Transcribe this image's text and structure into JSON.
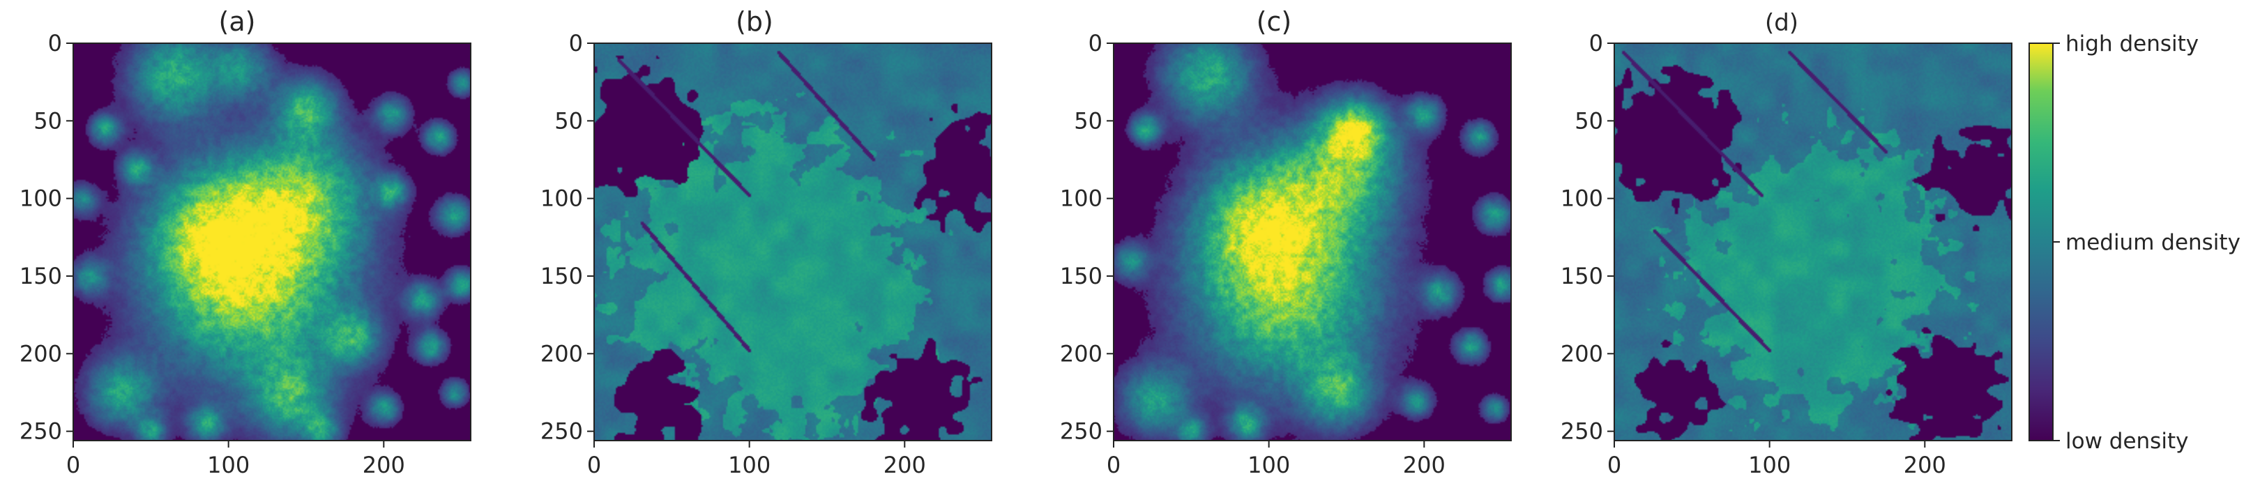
{
  "chart_data": {
    "type": "heatmap",
    "panels": [
      {
        "title": "(a)",
        "xlim": [
          0,
          256
        ],
        "ylim": [
          256,
          0
        ],
        "xticks": [
          0,
          100,
          200
        ],
        "yticks": [
          0,
          50,
          100,
          150,
          200,
          250
        ],
        "xtick_labels": [
          "0",
          "100",
          "200"
        ],
        "ytick_labels": [
          "0",
          "50",
          "100",
          "150",
          "200",
          "250"
        ],
        "pattern": "gaussian-blobs",
        "blobs": [
          {
            "x": 115,
            "y": 155,
            "r": 48,
            "v": 0.82
          },
          {
            "x": 90,
            "y": 120,
            "r": 30,
            "v": 0.55
          },
          {
            "x": 150,
            "y": 95,
            "r": 30,
            "v": 0.55
          },
          {
            "x": 65,
            "y": 20,
            "r": 22,
            "v": 0.62
          },
          {
            "x": 110,
            "y": 15,
            "r": 14,
            "v": 0.45
          },
          {
            "x": 30,
            "y": 225,
            "r": 16,
            "v": 0.55
          },
          {
            "x": 150,
            "y": 40,
            "r": 14,
            "v": 0.55
          },
          {
            "x": 140,
            "y": 230,
            "r": 18,
            "v": 0.5
          },
          {
            "x": 180,
            "y": 190,
            "r": 12,
            "v": 0.45
          },
          {
            "x": 20,
            "y": 55,
            "r": 7,
            "v": 0.55
          },
          {
            "x": 40,
            "y": 80,
            "r": 7,
            "v": 0.5
          },
          {
            "x": 205,
            "y": 45,
            "r": 8,
            "v": 0.5
          },
          {
            "x": 235,
            "y": 60,
            "r": 7,
            "v": 0.55
          },
          {
            "x": 250,
            "y": 25,
            "r": 6,
            "v": 0.5
          },
          {
            "x": 245,
            "y": 110,
            "r": 8,
            "v": 0.55
          },
          {
            "x": 250,
            "y": 155,
            "r": 7,
            "v": 0.55
          },
          {
            "x": 205,
            "y": 95,
            "r": 7,
            "v": 0.5
          },
          {
            "x": 225,
            "y": 165,
            "r": 8,
            "v": 0.5
          },
          {
            "x": 230,
            "y": 195,
            "r": 7,
            "v": 0.55
          },
          {
            "x": 200,
            "y": 235,
            "r": 7,
            "v": 0.5
          },
          {
            "x": 245,
            "y": 225,
            "r": 6,
            "v": 0.5
          },
          {
            "x": 160,
            "y": 250,
            "r": 8,
            "v": 0.45
          },
          {
            "x": 85,
            "y": 245,
            "r": 8,
            "v": 0.5
          },
          {
            "x": 10,
            "y": 150,
            "r": 8,
            "v": 0.45
          },
          {
            "x": 50,
            "y": 250,
            "r": 7,
            "v": 0.45
          },
          {
            "x": 5,
            "y": 100,
            "r": 7,
            "v": 0.45
          }
        ]
      },
      {
        "title": "(b)",
        "xlim": [
          0,
          256
        ],
        "ylim": [
          256,
          0
        ],
        "xticks": [
          0,
          100,
          200
        ],
        "yticks": [
          0,
          50,
          100,
          150,
          200,
          250
        ],
        "xtick_labels": [
          "0",
          "100",
          "200"
        ],
        "ytick_labels": [
          "0",
          "50",
          "100",
          "150",
          "200",
          "250"
        ],
        "pattern": "segmented-plateau",
        "plateau": {
          "x": 115,
          "y": 150,
          "r": 92
        },
        "dark_regions": [
          {
            "x": 30,
            "y": 55,
            "r": 38
          },
          {
            "x": 240,
            "y": 80,
            "r": 30
          },
          {
            "x": 210,
            "y": 230,
            "r": 30
          },
          {
            "x": 40,
            "y": 235,
            "r": 25
          }
        ],
        "lines": [
          {
            "x1": 15,
            "y1": 10,
            "x2": 100,
            "y2": 98
          },
          {
            "x1": 118,
            "y1": 5,
            "x2": 180,
            "y2": 75
          },
          {
            "x1": 30,
            "y1": 115,
            "x2": 100,
            "y2": 198
          }
        ]
      },
      {
        "title": "(c)",
        "xlim": [
          0,
          256
        ],
        "ylim": [
          256,
          0
        ],
        "xticks": [
          0,
          100,
          200
        ],
        "yticks": [
          0,
          50,
          100,
          150,
          200,
          250
        ],
        "xtick_labels": [
          "0",
          "100",
          "200"
        ],
        "ytick_labels": [
          "0",
          "50",
          "100",
          "150",
          "200",
          "250"
        ],
        "pattern": "gaussian-blobs",
        "blobs": [
          {
            "x": 110,
            "y": 160,
            "r": 46,
            "v": 0.8
          },
          {
            "x": 95,
            "y": 110,
            "r": 30,
            "v": 0.55
          },
          {
            "x": 150,
            "y": 80,
            "r": 28,
            "v": 0.58
          },
          {
            "x": 60,
            "y": 20,
            "r": 22,
            "v": 0.62
          },
          {
            "x": 155,
            "y": 55,
            "r": 14,
            "v": 0.6
          },
          {
            "x": 25,
            "y": 230,
            "r": 16,
            "v": 0.55
          },
          {
            "x": 145,
            "y": 225,
            "r": 16,
            "v": 0.5
          },
          {
            "x": 20,
            "y": 55,
            "r": 7,
            "v": 0.55
          },
          {
            "x": 200,
            "y": 45,
            "r": 8,
            "v": 0.5
          },
          {
            "x": 235,
            "y": 60,
            "r": 7,
            "v": 0.55
          },
          {
            "x": 245,
            "y": 110,
            "r": 8,
            "v": 0.55
          },
          {
            "x": 250,
            "y": 155,
            "r": 7,
            "v": 0.55
          },
          {
            "x": 210,
            "y": 160,
            "r": 8,
            "v": 0.5
          },
          {
            "x": 230,
            "y": 195,
            "r": 7,
            "v": 0.55
          },
          {
            "x": 195,
            "y": 230,
            "r": 7,
            "v": 0.5
          },
          {
            "x": 245,
            "y": 235,
            "r": 6,
            "v": 0.5
          },
          {
            "x": 85,
            "y": 245,
            "r": 8,
            "v": 0.5
          },
          {
            "x": 10,
            "y": 140,
            "r": 8,
            "v": 0.45
          },
          {
            "x": 50,
            "y": 250,
            "r": 7,
            "v": 0.45
          }
        ]
      },
      {
        "title": "(d)",
        "xlim": [
          0,
          256
        ],
        "ylim": [
          256,
          0
        ],
        "xticks": [
          0,
          100,
          200
        ],
        "yticks": [
          0,
          50,
          100,
          150,
          200,
          250
        ],
        "xtick_labels": [
          "0",
          "100",
          "200"
        ],
        "ytick_labels": [
          "0",
          "50",
          "100",
          "150",
          "200",
          "250"
        ],
        "pattern": "segmented-plateau",
        "plateau": {
          "x": 130,
          "y": 150,
          "r": 80
        },
        "dark_regions": [
          {
            "x": 35,
            "y": 60,
            "r": 40
          },
          {
            "x": 235,
            "y": 85,
            "r": 30
          },
          {
            "x": 215,
            "y": 225,
            "r": 32
          },
          {
            "x": 40,
            "y": 225,
            "r": 22
          }
        ],
        "lines": [
          {
            "x1": 5,
            "y1": 5,
            "x2": 95,
            "y2": 98
          },
          {
            "x1": 112,
            "y1": 5,
            "x2": 175,
            "y2": 70
          },
          {
            "x1": 25,
            "y1": 120,
            "x2": 100,
            "y2": 198
          }
        ]
      }
    ],
    "colorbar": {
      "colormap": "viridis",
      "labels": [
        "high density",
        "medium density",
        "low density"
      ],
      "levels": [
        1.0,
        0.5,
        0.0
      ]
    },
    "colors": {
      "low": "#440154",
      "medium": "#21918c",
      "high": "#fde725"
    }
  }
}
